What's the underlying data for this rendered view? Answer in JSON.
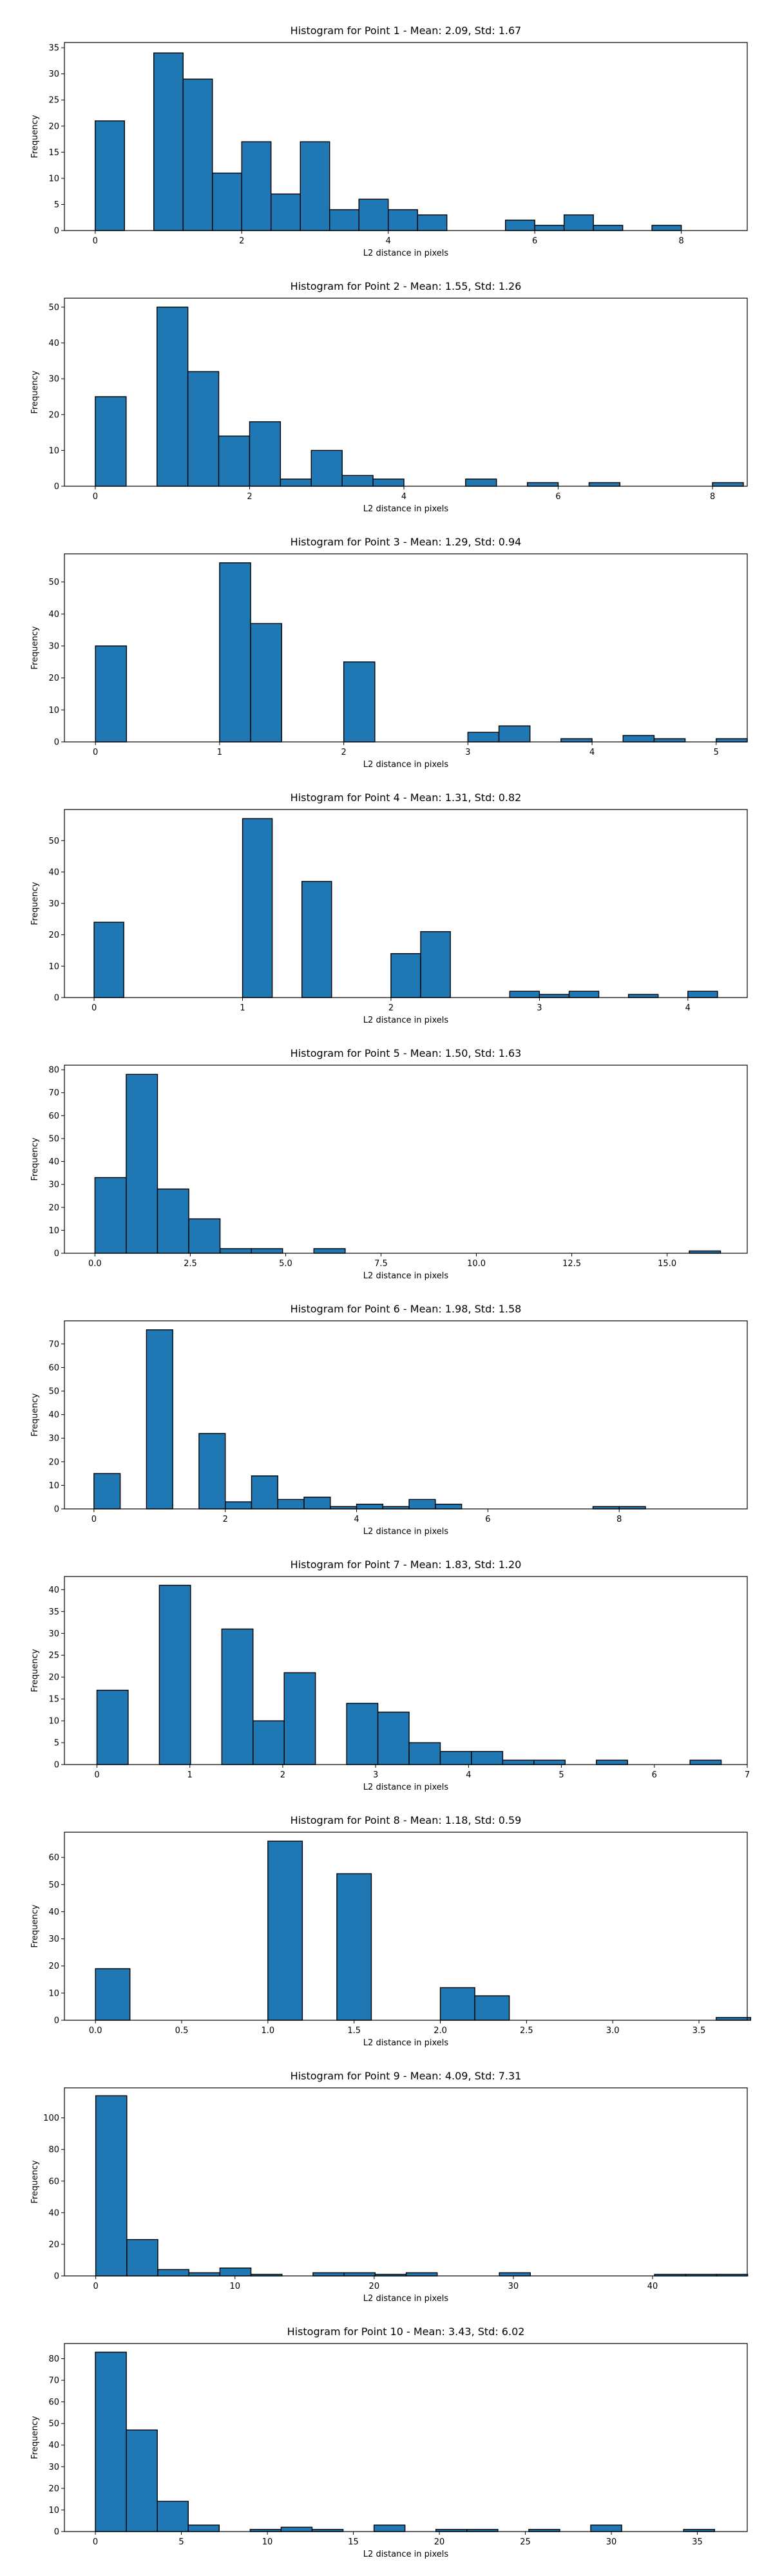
{
  "chart_data": [
    {
      "type": "histogram",
      "title": "Histogram for Point 1 - Mean: 2.09, Std: 1.67",
      "xlabel": "L2 distance in pixels",
      "ylabel": "Frequency",
      "xlim": [
        -0.42,
        8.9
      ],
      "ylim": [
        0,
        36
      ],
      "xticks": [
        0,
        2,
        4,
        6,
        8
      ],
      "xtick_labels": [
        "0",
        "2",
        "4",
        "6",
        "8"
      ],
      "yticks": [
        0,
        5,
        10,
        15,
        20,
        25,
        30,
        35
      ],
      "bin_start": 0.0,
      "bin_width": 0.4,
      "values": [
        21,
        0,
        34,
        29,
        11,
        17,
        7,
        17,
        4,
        6,
        4,
        3,
        0,
        0,
        2,
        1,
        3,
        1,
        0,
        1
      ]
    },
    {
      "type": "histogram",
      "title": "Histogram for Point 2 - Mean: 1.55, Std: 1.26",
      "xlabel": "L2 distance in pixels",
      "ylabel": "Frequency",
      "xlim": [
        -0.4,
        8.45
      ],
      "ylim": [
        0,
        52.5
      ],
      "xticks": [
        0,
        2,
        4,
        6,
        8
      ],
      "xtick_labels": [
        "0",
        "2",
        "4",
        "6",
        "8"
      ],
      "yticks": [
        0,
        10,
        20,
        30,
        40,
        50
      ],
      "bin_start": 0.0,
      "bin_width": 0.4,
      "values": [
        25,
        0,
        50,
        32,
        14,
        18,
        2,
        10,
        3,
        2,
        0,
        0,
        2,
        0,
        1,
        0,
        1,
        0,
        0,
        0,
        1
      ]
    },
    {
      "type": "histogram",
      "title": "Histogram for Point 3 - Mean: 1.29, Std: 0.94",
      "xlabel": "L2 distance in pixels",
      "ylabel": "Frequency",
      "xlim": [
        -0.25,
        5.25
      ],
      "ylim": [
        0,
        58.8
      ],
      "xticks": [
        0,
        1,
        2,
        3,
        4,
        5
      ],
      "xtick_labels": [
        "0",
        "1",
        "2",
        "3",
        "4",
        "5"
      ],
      "yticks": [
        0,
        10,
        20,
        30,
        40,
        50
      ],
      "bin_start": 0.0,
      "bin_width": 0.25,
      "values": [
        30,
        0,
        0,
        0,
        56,
        37,
        0,
        0,
        25,
        0,
        0,
        0,
        3,
        5,
        0,
        1,
        0,
        2,
        1,
        0,
        1
      ]
    },
    {
      "type": "histogram",
      "title": "Histogram for Point 4 - Mean: 1.31, Std: 0.82",
      "xlabel": "L2 distance in pixels",
      "ylabel": "Frequency",
      "xlim": [
        -0.2,
        4.4
      ],
      "ylim": [
        0,
        59.9
      ],
      "xticks": [
        0,
        1,
        2,
        3,
        4
      ],
      "xtick_labels": [
        "0",
        "1",
        "2",
        "3",
        "4"
      ],
      "yticks": [
        0,
        10,
        20,
        30,
        40,
        50
      ],
      "bin_start": 0.0,
      "bin_width": 0.2,
      "values": [
        24,
        0,
        0,
        0,
        0,
        57,
        0,
        37,
        0,
        0,
        14,
        21,
        0,
        0,
        2,
        1,
        2,
        0,
        1,
        0,
        2
      ]
    },
    {
      "type": "histogram",
      "title": "Histogram for Point 5 - Mean: 1.50, Std: 1.63",
      "xlabel": "L2 distance in pixels",
      "ylabel": "Frequency",
      "xlim": [
        -0.8,
        17.1
      ],
      "ylim": [
        0,
        82
      ],
      "xticks": [
        0,
        2.5,
        5,
        7.5,
        10,
        12.5,
        15
      ],
      "xtick_labels": [
        "0.0",
        "2.5",
        "5.0",
        "7.5",
        "10.0",
        "12.5",
        "15.0"
      ],
      "yticks": [
        0,
        10,
        20,
        30,
        40,
        50,
        60,
        70,
        80
      ],
      "bin_start": 0.0,
      "bin_width": 0.82,
      "values": [
        33,
        78,
        28,
        15,
        2,
        2,
        0,
        2,
        0,
        0,
        0,
        0,
        0,
        0,
        0,
        0,
        0,
        0,
        0,
        1
      ]
    },
    {
      "type": "histogram",
      "title": "Histogram for Point 6 - Mean: 1.98, Std: 1.58",
      "xlabel": "L2 distance in pixels",
      "ylabel": "Frequency",
      "xlim": [
        -0.45,
        9.95
      ],
      "ylim": [
        0,
        79.8
      ],
      "xticks": [
        0,
        2,
        4,
        6,
        8
      ],
      "xtick_labels": [
        "0",
        "2",
        "4",
        "6",
        "8"
      ],
      "yticks": [
        0,
        10,
        20,
        30,
        40,
        50,
        60,
        70
      ],
      "bin_start": 0.0,
      "bin_width": 0.4,
      "values": [
        15,
        0,
        76,
        0,
        32,
        3,
        14,
        4,
        5,
        1,
        2,
        1,
        4,
        2,
        0,
        0,
        0,
        0,
        0,
        1,
        1
      ]
    },
    {
      "type": "histogram",
      "title": "Histogram for Point 7 - Mean: 1.83, Std: 1.20",
      "xlabel": "L2 distance in pixels",
      "ylabel": "Frequency",
      "xlim": [
        -0.35,
        7.0
      ],
      "ylim": [
        0,
        43
      ],
      "xticks": [
        0,
        1,
        2,
        3,
        4,
        5,
        6,
        7
      ],
      "xtick_labels": [
        "0",
        "1",
        "2",
        "3",
        "4",
        "5",
        "6",
        "7"
      ],
      "yticks": [
        0,
        5,
        10,
        15,
        20,
        25,
        30,
        35,
        40
      ],
      "bin_start": 0.0,
      "bin_width": 0.336,
      "values": [
        17,
        0,
        41,
        0,
        31,
        10,
        21,
        0,
        14,
        12,
        5,
        3,
        3,
        1,
        1,
        0,
        1,
        0,
        0,
        1
      ]
    },
    {
      "type": "histogram",
      "title": "Histogram for Point 8 - Mean: 1.18, Std: 0.59",
      "xlabel": "L2 distance in pixels",
      "ylabel": "Frequency",
      "xlim": [
        -0.18,
        3.78
      ],
      "ylim": [
        0,
        69.3
      ],
      "xticks": [
        0,
        0.5,
        1,
        1.5,
        2,
        2.5,
        3,
        3.5
      ],
      "xtick_labels": [
        "0.0",
        "0.5",
        "1.0",
        "1.5",
        "2.0",
        "2.5",
        "3.0",
        "3.5"
      ],
      "yticks": [
        0,
        10,
        20,
        30,
        40,
        50,
        60
      ],
      "bin_start": 0.0,
      "bin_width": 0.2,
      "values": [
        19,
        0,
        0,
        0,
        0,
        66,
        0,
        54,
        0,
        0,
        12,
        9,
        0,
        0,
        0,
        0,
        0,
        0,
        1
      ]
    },
    {
      "type": "histogram",
      "title": "Histogram for Point 9 - Mean: 4.09, Std: 7.31",
      "xlabel": "L2 distance in pixels",
      "ylabel": "Frequency",
      "xlim": [
        -2.25,
        46.8
      ],
      "ylim": [
        0,
        119
      ],
      "xticks": [
        0,
        10,
        20,
        30,
        40
      ],
      "xtick_labels": [
        "0",
        "10",
        "20",
        "30",
        "40"
      ],
      "yticks": [
        0,
        20,
        40,
        60,
        80,
        100
      ],
      "bin_start": 0.0,
      "bin_width": 2.23,
      "values": [
        114,
        23,
        4,
        2,
        5,
        1,
        0,
        2,
        2,
        1,
        2,
        0,
        0,
        2,
        0,
        0,
        0,
        0,
        1,
        1,
        1
      ]
    },
    {
      "type": "histogram",
      "title": "Histogram for Point 10 - Mean: 3.43, Std: 6.02",
      "xlabel": "L2 distance in pixels",
      "ylabel": "Frequency",
      "xlim": [
        -1.8,
        37.9
      ],
      "ylim": [
        0,
        87
      ],
      "xticks": [
        0,
        5,
        10,
        15,
        20,
        25,
        30,
        35
      ],
      "xtick_labels": [
        "0",
        "5",
        "10",
        "15",
        "20",
        "25",
        "30",
        "35"
      ],
      "yticks": [
        0,
        10,
        20,
        30,
        40,
        50,
        60,
        70,
        80
      ],
      "bin_start": 0.0,
      "bin_width": 1.8,
      "values": [
        83,
        47,
        14,
        3,
        0,
        1,
        2,
        1,
        0,
        3,
        0,
        1,
        1,
        0,
        1,
        0,
        3,
        0,
        0,
        1
      ]
    }
  ],
  "colors": {
    "bar_fill": "#1f77b4",
    "bar_edge": "#000000",
    "text": "#000000",
    "axes_bg": "#ffffff"
  }
}
